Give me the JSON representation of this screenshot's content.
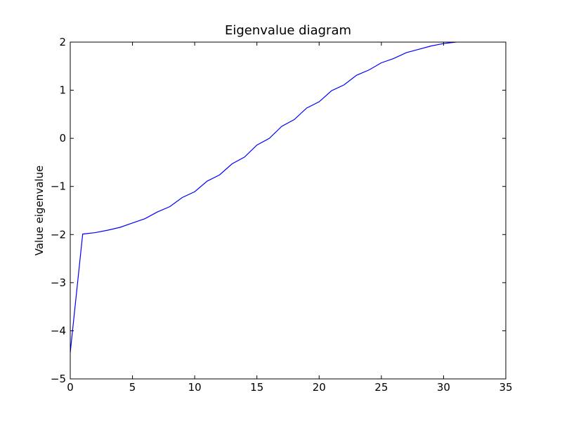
{
  "chart_data": {
    "type": "line",
    "title": "Eigenvalue diagram",
    "xlabel": "",
    "ylabel": "Value eigenvalue",
    "xlim": [
      0,
      35
    ],
    "ylim": [
      -5,
      2
    ],
    "xticks": [
      0,
      5,
      10,
      15,
      20,
      25,
      30,
      35
    ],
    "yticks": [
      2,
      1,
      0,
      -1,
      -2,
      -3,
      -4,
      -5
    ],
    "xtick_labels": [
      "0",
      "5",
      "10",
      "15",
      "20",
      "25",
      "30",
      "35"
    ],
    "ytick_labels": [
      "2",
      "1",
      "0",
      "−1",
      "−2",
      "−3",
      "−4",
      "−5"
    ],
    "grid": false,
    "legend": "none",
    "series": [
      {
        "color": "#0000ff",
        "x": [
          0,
          1,
          2,
          3,
          4,
          5,
          6,
          7,
          8,
          9,
          10,
          11,
          12,
          13,
          14,
          15,
          16,
          17,
          18,
          19,
          20,
          21,
          22,
          23,
          24,
          25,
          26,
          27,
          28,
          29,
          30,
          31,
          32
        ],
        "y": [
          -4.45,
          -1.99,
          -1.96,
          -1.91,
          -1.85,
          -1.76,
          -1.67,
          -1.53,
          -1.42,
          -1.23,
          -1.11,
          -0.89,
          -0.76,
          -0.53,
          -0.39,
          -0.14,
          0.0,
          0.25,
          0.39,
          0.63,
          0.76,
          0.99,
          1.11,
          1.31,
          1.42,
          1.57,
          1.66,
          1.78,
          1.85,
          1.92,
          1.97,
          2.0,
          2.05
        ]
      }
    ]
  }
}
